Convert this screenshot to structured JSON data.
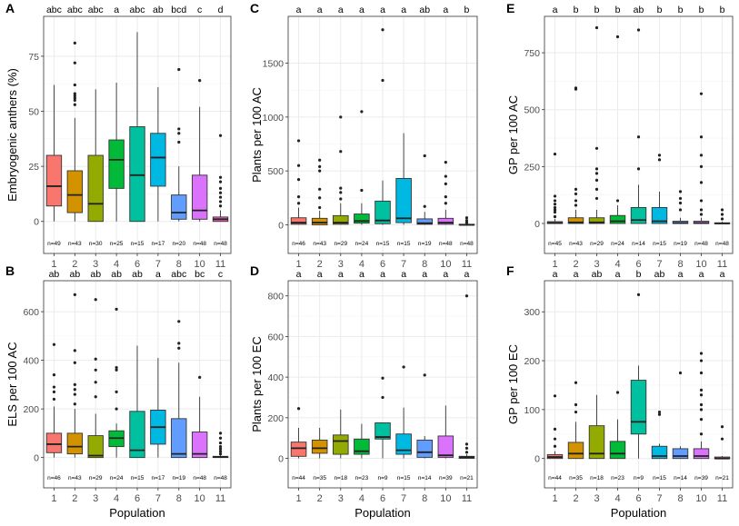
{
  "figure": {
    "x_label": "Population",
    "categories": [
      "1",
      "2",
      "3",
      "4",
      "6",
      "7",
      "8",
      "10",
      "11"
    ],
    "colors": [
      "#F8766D",
      "#D39200",
      "#93AA00",
      "#00BA38",
      "#00C19F",
      "#00B9E3",
      "#619CFF",
      "#DB72FB",
      "#FF61C3"
    ]
  },
  "chart_data": [
    {
      "panel": "A",
      "type": "box",
      "ylabel": "Embryogenic anthers (%)",
      "ylim": [
        -3,
        89
      ],
      "yticks": [
        0,
        25,
        50,
        75
      ],
      "tick_labels": [
        "0",
        "25",
        "50",
        "75"
      ],
      "letters": [
        "abc",
        "abc",
        "abc",
        "a",
        "abc",
        "ab",
        "bcd",
        "c",
        "d"
      ],
      "n": [
        "n=49",
        "n=43",
        "n=30",
        "n=25",
        "n=15",
        "n=17",
        "n=20",
        "n=48",
        "n=48"
      ],
      "boxes": [
        {
          "q1": 7,
          "median": 16,
          "q3": 30,
          "lo": 0,
          "hi": 62,
          "outliers": []
        },
        {
          "q1": 4,
          "median": 12,
          "q3": 23,
          "lo": 0,
          "hi": 47,
          "outliers": [
            53,
            55,
            56,
            57,
            58,
            62,
            72,
            81
          ]
        },
        {
          "q1": 0,
          "median": 8,
          "q3": 30,
          "lo": 0,
          "hi": 60,
          "outliers": []
        },
        {
          "q1": 15,
          "median": 28,
          "q3": 37,
          "lo": 0,
          "hi": 63,
          "outliers": []
        },
        {
          "q1": 0,
          "median": 21,
          "q3": 43,
          "lo": 0,
          "hi": 86,
          "outliers": []
        },
        {
          "q1": 16,
          "median": 29,
          "q3": 40,
          "lo": 0,
          "hi": 61,
          "outliers": []
        },
        {
          "q1": 1,
          "median": 4,
          "q3": 12,
          "lo": 0,
          "hi": 25,
          "outliers": [
            36,
            40,
            42,
            69
          ]
        },
        {
          "q1": 1,
          "median": 5,
          "q3": 21,
          "lo": 0,
          "hi": 52,
          "outliers": [
            64
          ]
        },
        {
          "q1": 0,
          "median": 1,
          "q3": 2,
          "lo": 0,
          "hi": 5,
          "outliers": [
            7,
            9,
            11,
            13,
            15,
            18,
            20,
            39
          ]
        }
      ]
    },
    {
      "panel": "B",
      "type": "box",
      "ylabel": "ELS per 100 AC",
      "ylim": [
        -20,
        690
      ],
      "yticks": [
        0,
        200,
        400,
        600
      ],
      "tick_labels": [
        "0",
        "200",
        "400",
        "600"
      ],
      "letters": [
        "ab",
        "ab",
        "ab",
        "ab",
        "ab",
        "a",
        "abc",
        "bc",
        "c"
      ],
      "n": [
        "n=46",
        "n=43",
        "n=29",
        "n=24",
        "n=15",
        "n=17",
        "n=19",
        "n=48",
        "n=48"
      ],
      "boxes": [
        {
          "q1": 20,
          "median": 55,
          "q3": 100,
          "lo": 0,
          "hi": 210,
          "outliers": [
            240,
            270,
            290,
            340,
            465
          ]
        },
        {
          "q1": 15,
          "median": 45,
          "q3": 100,
          "lo": 0,
          "hi": 200,
          "outliers": [
            220,
            260,
            280,
            300,
            390,
            440,
            670
          ]
        },
        {
          "q1": 0,
          "median": 8,
          "q3": 90,
          "lo": 0,
          "hi": 180,
          "outliers": [
            250,
            310,
            360,
            405,
            650
          ]
        },
        {
          "q1": 45,
          "median": 80,
          "q3": 110,
          "lo": 0,
          "hi": 140,
          "outliers": [
            200,
            270,
            360,
            370,
            610
          ]
        },
        {
          "q1": 0,
          "median": 30,
          "q3": 190,
          "lo": 0,
          "hi": 460,
          "outliers": []
        },
        {
          "q1": 55,
          "median": 125,
          "q3": 195,
          "lo": 0,
          "hi": 410,
          "outliers": []
        },
        {
          "q1": 0,
          "median": 15,
          "q3": 160,
          "lo": 0,
          "hi": 390,
          "outliers": [
            450,
            470,
            560
          ]
        },
        {
          "q1": 0,
          "median": 15,
          "q3": 105,
          "lo": 0,
          "hi": 250,
          "outliers": [
            330
          ]
        },
        {
          "q1": 0,
          "median": 2,
          "q3": 5,
          "lo": 0,
          "hi": 10,
          "outliers": [
            15,
            25,
            35,
            45,
            60,
            80,
            100
          ]
        }
      ]
    },
    {
      "panel": "C",
      "type": "box",
      "ylabel": "Plants per 100 AC",
      "ylim": [
        -30,
        1850
      ],
      "yticks": [
        0,
        500,
        1000,
        1500
      ],
      "tick_labels": [
        "0",
        "500",
        "1000",
        "1500"
      ],
      "letters": [
        "a",
        "a",
        "a",
        "a",
        "a",
        "a",
        "ab",
        "a",
        "b"
      ],
      "n": [
        "n=46",
        "n=43",
        "n=29",
        "n=24",
        "n=15",
        "n=15",
        "n=19",
        "n=48",
        "n=48"
      ],
      "boxes": [
        {
          "q1": 5,
          "median": 20,
          "q3": 65,
          "lo": 0,
          "hi": 160,
          "outliers": [
            200,
            260,
            420,
            550,
            780
          ]
        },
        {
          "q1": 0,
          "median": 20,
          "q3": 60,
          "lo": 0,
          "hi": 130,
          "outliers": [
            160,
            250,
            330,
            500,
            540,
            600
          ]
        },
        {
          "q1": 5,
          "median": 20,
          "q3": 85,
          "lo": 0,
          "hi": 200,
          "outliers": [
            240,
            300,
            340,
            680,
            1000
          ]
        },
        {
          "q1": 15,
          "median": 35,
          "q3": 100,
          "lo": 0,
          "hi": 200,
          "outliers": [
            320,
            1050
          ]
        },
        {
          "q1": 10,
          "median": 40,
          "q3": 220,
          "lo": 0,
          "hi": 410,
          "outliers": [
            1340,
            1810
          ]
        },
        {
          "q1": 20,
          "median": 60,
          "q3": 430,
          "lo": 0,
          "hi": 850,
          "outliers": []
        },
        {
          "q1": 5,
          "median": 15,
          "q3": 55,
          "lo": 0,
          "hi": 120,
          "outliers": [
            170,
            640
          ]
        },
        {
          "q1": 5,
          "median": 20,
          "q3": 60,
          "lo": 0,
          "hi": 140,
          "outliers": [
            200,
            260,
            380,
            450,
            580
          ]
        },
        {
          "q1": 0,
          "median": 0,
          "q3": 5,
          "lo": 0,
          "hi": 10,
          "outliers": [
            20,
            40,
            65
          ]
        }
      ]
    },
    {
      "panel": "D",
      "type": "box",
      "ylabel": "Plants per 100 EC",
      "ylim": [
        -20,
        830
      ],
      "yticks": [
        0,
        200,
        400,
        600,
        800
      ],
      "tick_labels": [
        "0",
        "200",
        "400",
        "600",
        "800"
      ],
      "letters": [
        "a",
        "a",
        "a",
        "a",
        "a",
        "a",
        "a",
        "a",
        "a"
      ],
      "n": [
        "n=44",
        "n=35",
        "n=18",
        "n=23",
        "n=9",
        "n=15",
        "n=14",
        "n=39",
        "n=21"
      ],
      "boxes": [
        {
          "q1": 10,
          "median": 50,
          "q3": 80,
          "lo": 0,
          "hi": 150,
          "outliers": [
            245
          ]
        },
        {
          "q1": 25,
          "median": 50,
          "q3": 90,
          "lo": 0,
          "hi": 150,
          "outliers": []
        },
        {
          "q1": 20,
          "median": 85,
          "q3": 115,
          "lo": 0,
          "hi": 240,
          "outliers": []
        },
        {
          "q1": 20,
          "median": 35,
          "q3": 95,
          "lo": 0,
          "hi": 170,
          "outliers": []
        },
        {
          "q1": 95,
          "median": 105,
          "q3": 175,
          "lo": 0,
          "hi": 175,
          "outliers": [
            300,
            395
          ]
        },
        {
          "q1": 20,
          "median": 40,
          "q3": 120,
          "lo": 0,
          "hi": 250,
          "outliers": [
            450
          ]
        },
        {
          "q1": 5,
          "median": 30,
          "q3": 90,
          "lo": 0,
          "hi": 110,
          "outliers": [
            410
          ]
        },
        {
          "q1": 5,
          "median": 15,
          "q3": 110,
          "lo": 0,
          "hi": 260,
          "outliers": []
        },
        {
          "q1": 0,
          "median": 5,
          "q3": 10,
          "lo": 0,
          "hi": 20,
          "outliers": [
            30,
            50,
            70,
            800
          ]
        }
      ]
    },
    {
      "panel": "E",
      "type": "box",
      "ylabel": "GP per 100 AC",
      "ylim": [
        -20,
        870
      ],
      "yticks": [
        0,
        250,
        500,
        750
      ],
      "tick_labels": [
        "0",
        "250",
        "500",
        "750"
      ],
      "letters": [
        "a",
        "b",
        "b",
        "b",
        "ab",
        "b",
        "b",
        "b",
        "b"
      ],
      "n": [
        "n=45",
        "n=43",
        "n=29",
        "n=24",
        "n=14",
        "n=15",
        "n=19",
        "n=48",
        "n=48"
      ],
      "boxes": [
        {
          "q1": 0,
          "median": 2,
          "q3": 8,
          "lo": 0,
          "hi": 20,
          "outliers": [
            30,
            50,
            60,
            70,
            85,
            100,
            120,
            305
          ]
        },
        {
          "q1": 0,
          "median": 5,
          "q3": 25,
          "lo": 0,
          "hi": 60,
          "outliers": [
            80,
            100,
            130,
            150,
            590,
            595
          ]
        },
        {
          "q1": 0,
          "median": 5,
          "q3": 25,
          "lo": 0,
          "hi": 60,
          "outliers": [
            110,
            150,
            190,
            220,
            240,
            330,
            860
          ]
        },
        {
          "q1": 0,
          "median": 10,
          "q3": 35,
          "lo": 0,
          "hi": 80,
          "outliers": [
            100,
            820
          ]
        },
        {
          "q1": 0,
          "median": 15,
          "q3": 70,
          "lo": 0,
          "hi": 170,
          "outliers": [
            240,
            380,
            850
          ]
        },
        {
          "q1": 0,
          "median": 10,
          "q3": 70,
          "lo": 0,
          "hi": 140,
          "outliers": [
            280,
            300
          ]
        },
        {
          "q1": 0,
          "median": 2,
          "q3": 10,
          "lo": 0,
          "hi": 25,
          "outliers": [
            60,
            90,
            110,
            140
          ]
        },
        {
          "q1": 0,
          "median": 2,
          "q3": 10,
          "lo": 0,
          "hi": 25,
          "outliers": [
            40,
            60,
            100,
            180,
            250,
            300,
            380,
            570
          ]
        },
        {
          "q1": 0,
          "median": 0,
          "q3": 3,
          "lo": 0,
          "hi": 8,
          "outliers": [
            20,
            40,
            60
          ]
        }
      ]
    },
    {
      "panel": "F",
      "type": "box",
      "ylabel": "GP per 100 EC",
      "ylim": [
        -8,
        345
      ],
      "yticks": [
        0,
        100,
        200,
        300
      ],
      "tick_labels": [
        "0",
        "100",
        "200",
        "300"
      ],
      "letters": [
        "a",
        "a",
        "ab",
        "a",
        "b",
        "ab",
        "a",
        "a",
        "a"
      ],
      "n": [
        "n=44",
        "n=35",
        "n=18",
        "n=23",
        "n=9",
        "n=15",
        "n=14",
        "n=39",
        "n=21"
      ],
      "boxes": [
        {
          "q1": 0,
          "median": 3,
          "q3": 8,
          "lo": 0,
          "hi": 15,
          "outliers": [
            25,
            40,
            60,
            128
          ]
        },
        {
          "q1": 0,
          "median": 10,
          "q3": 33,
          "lo": 0,
          "hi": 75,
          "outliers": [
            95,
            110,
            155
          ]
        },
        {
          "q1": 0,
          "median": 10,
          "q3": 67,
          "lo": 0,
          "hi": 130,
          "outliers": []
        },
        {
          "q1": 0,
          "median": 10,
          "q3": 35,
          "lo": 0,
          "hi": 80,
          "outliers": [
            135
          ]
        },
        {
          "q1": 50,
          "median": 75,
          "q3": 160,
          "lo": 0,
          "hi": 190,
          "outliers": [
            335
          ]
        },
        {
          "q1": 0,
          "median": 5,
          "q3": 25,
          "lo": 0,
          "hi": 30,
          "outliers": [
            90,
            95
          ]
        },
        {
          "q1": 0,
          "median": 5,
          "q3": 20,
          "lo": 0,
          "hi": 25,
          "outliers": [
            175
          ]
        },
        {
          "q1": 0,
          "median": 5,
          "q3": 20,
          "lo": 0,
          "hi": 35,
          "outliers": [
            50,
            80,
            100,
            110,
            130,
            140,
            175,
            200,
            215
          ]
        },
        {
          "q1": 0,
          "median": 0,
          "q3": 3,
          "lo": 0,
          "hi": 5,
          "outliers": [
            40,
            65
          ]
        }
      ]
    }
  ]
}
